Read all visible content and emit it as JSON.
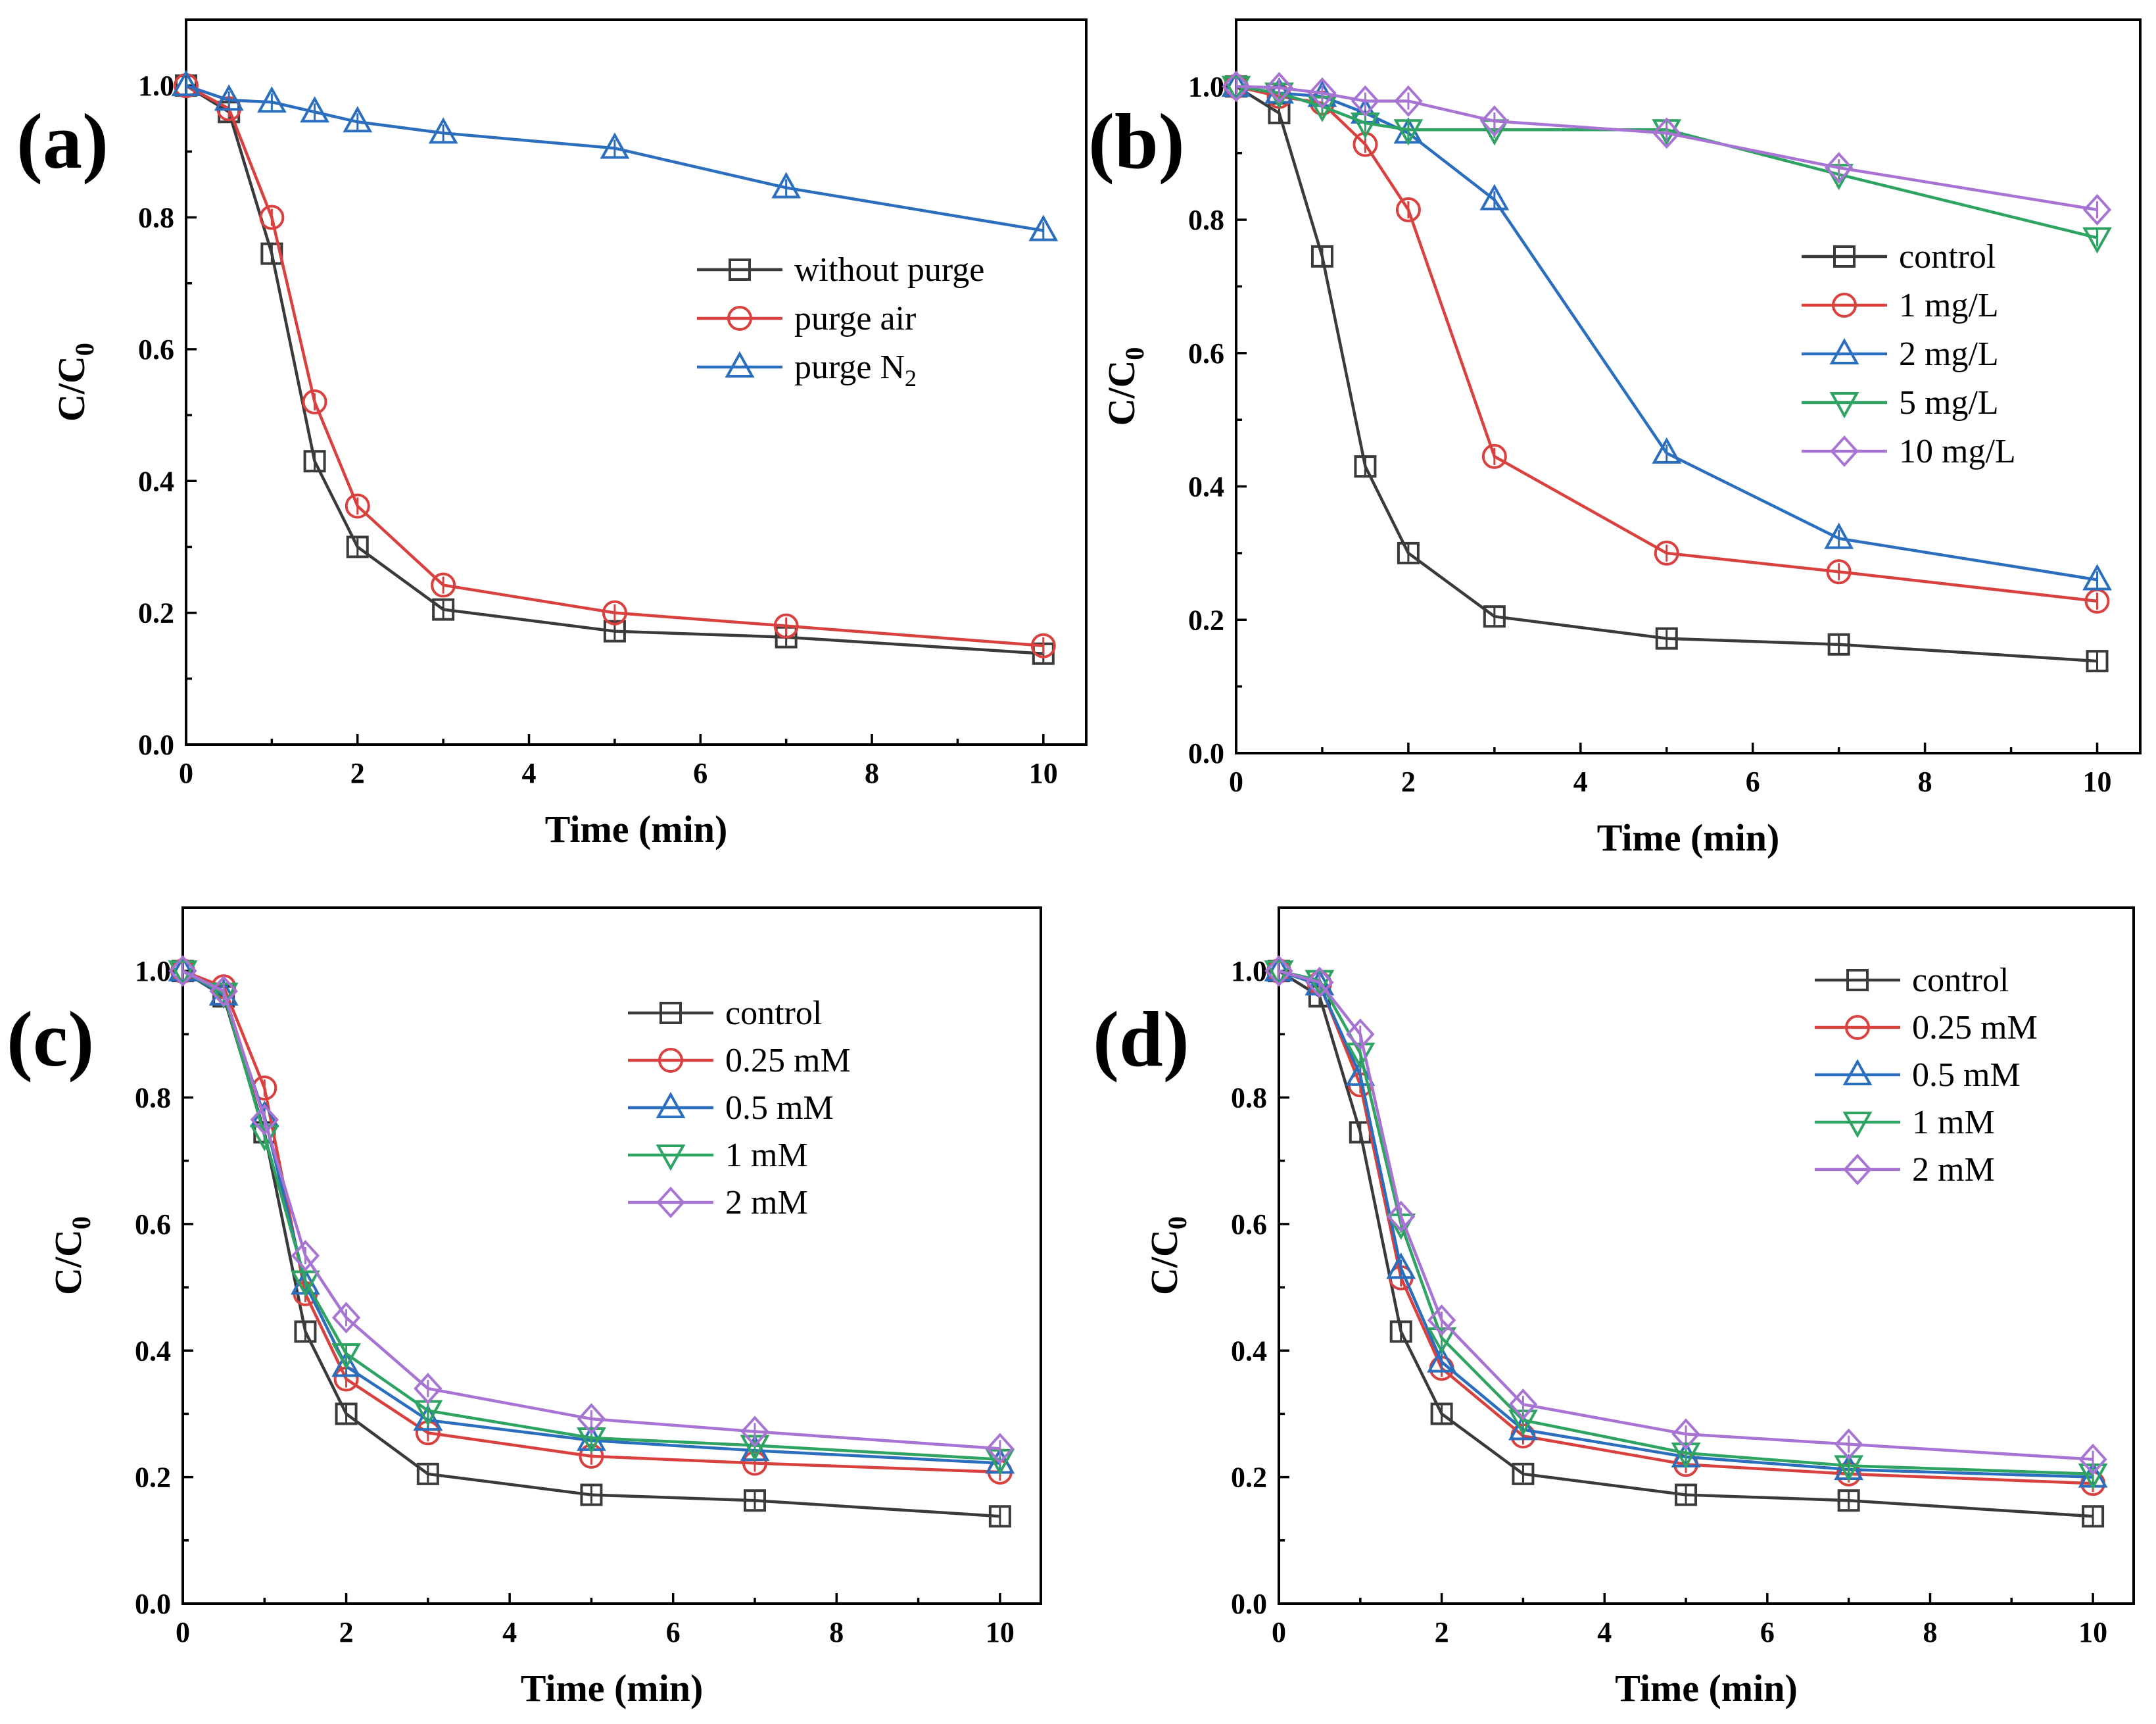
{
  "chart_data": [
    {
      "type": "line",
      "panel_label": "(a)",
      "xlabel": "Time (min)",
      "ylabel_main": "C/C",
      "ylabel_sub": "0",
      "xlim": [
        0,
        10.5
      ],
      "ylim": [
        0,
        1.1
      ],
      "xticks": [
        0,
        2,
        4,
        6,
        8,
        10
      ],
      "yticks": [
        0.0,
        0.2,
        0.4,
        0.6,
        0.8,
        1.0
      ],
      "xtick_labels": [
        "0",
        "2",
        "4",
        "6",
        "8",
        "10"
      ],
      "ytick_labels": [
        "0.0",
        "0.2",
        "0.4",
        "0.6",
        "0.8",
        "1.0"
      ],
      "legend_position": "right",
      "series": [
        {
          "name": "without purge",
          "name_sub": "",
          "marker": "square",
          "color": "#3a3a3a",
          "x": [
            0,
            0.5,
            1,
            1.5,
            2,
            3,
            5,
            7,
            10
          ],
          "y": [
            1.0,
            0.96,
            0.745,
            0.43,
            0.3,
            0.205,
            0.172,
            0.163,
            0.138
          ]
        },
        {
          "name": "purge air",
          "name_sub": "",
          "marker": "circle",
          "color": "#d9413f",
          "x": [
            0,
            0.5,
            1,
            1.5,
            2,
            3,
            5,
            7,
            10
          ],
          "y": [
            1.0,
            0.965,
            0.8,
            0.52,
            0.362,
            0.242,
            0.2,
            0.18,
            0.15
          ]
        },
        {
          "name": "purge N",
          "name_sub": "2",
          "marker": "triangle",
          "color": "#2a6ebd",
          "x": [
            0,
            0.5,
            1,
            1.5,
            2,
            3,
            5,
            7,
            10
          ],
          "y": [
            1.0,
            0.978,
            0.975,
            0.96,
            0.945,
            0.928,
            0.905,
            0.845,
            0.78
          ]
        }
      ]
    },
    {
      "type": "line",
      "panel_label": "(b)",
      "xlabel": "Time (min)",
      "ylabel_main": "C/C",
      "ylabel_sub": "0",
      "xlim": [
        0,
        10.5
      ],
      "ylim": [
        0,
        1.1
      ],
      "xticks": [
        0,
        2,
        4,
        6,
        8,
        10
      ],
      "yticks": [
        0.0,
        0.2,
        0.4,
        0.6,
        0.8,
        1.0
      ],
      "xtick_labels": [
        "0",
        "2",
        "4",
        "6",
        "8",
        "10"
      ],
      "ytick_labels": [
        "0.0",
        "0.2",
        "0.4",
        "0.6",
        "0.8",
        "1.0"
      ],
      "legend_position": "center",
      "series": [
        {
          "name": "control",
          "name_sub": "",
          "marker": "square",
          "color": "#3a3a3a",
          "x": [
            0,
            0.5,
            1,
            1.5,
            2,
            3,
            5,
            7,
            10
          ],
          "y": [
            1.0,
            0.96,
            0.745,
            0.43,
            0.3,
            0.205,
            0.172,
            0.163,
            0.138
          ]
        },
        {
          "name": "1 mg/L",
          "name_sub": "",
          "marker": "circle",
          "color": "#d9413f",
          "x": [
            0,
            0.5,
            1,
            1.5,
            2,
            3,
            5,
            7,
            10
          ],
          "y": [
            1.0,
            0.985,
            0.975,
            0.913,
            0.815,
            0.445,
            0.3,
            0.272,
            0.228
          ]
        },
        {
          "name": "2 mg/L",
          "name_sub": "",
          "marker": "triangle",
          "color": "#2a6ebd",
          "x": [
            0,
            0.5,
            1,
            1.5,
            2,
            3,
            5,
            7,
            10
          ],
          "y": [
            1.0,
            0.99,
            0.985,
            0.96,
            0.93,
            0.83,
            0.45,
            0.322,
            0.26
          ]
        },
        {
          "name": "5 mg/L",
          "name_sub": "",
          "marker": "triangle-down",
          "color": "#2ea362",
          "x": [
            0,
            0.5,
            1,
            1.5,
            2,
            3,
            5,
            7,
            10
          ],
          "y": [
            1.0,
            0.99,
            0.97,
            0.945,
            0.935,
            0.935,
            0.935,
            0.868,
            0.773
          ]
        },
        {
          "name": "10 mg/L",
          "name_sub": "",
          "marker": "diamond",
          "color": "#a874d4",
          "x": [
            0,
            0.5,
            1,
            1.5,
            2,
            3,
            5,
            7,
            10
          ],
          "y": [
            1.0,
            0.998,
            0.99,
            0.978,
            0.978,
            0.948,
            0.93,
            0.878,
            0.815
          ]
        }
      ]
    },
    {
      "type": "line",
      "panel_label": "(c)",
      "xlabel": "Time (min)",
      "ylabel_main": "C/C",
      "ylabel_sub": "0",
      "xlim": [
        0,
        10.5
      ],
      "ylim": [
        0,
        1.1
      ],
      "xticks": [
        0,
        2,
        4,
        6,
        8,
        10
      ],
      "yticks": [
        0.0,
        0.2,
        0.4,
        0.6,
        0.8,
        1.0
      ],
      "xtick_labels": [
        "0",
        "2",
        "4",
        "6",
        "8",
        "10"
      ],
      "ytick_labels": [
        "0.0",
        "0.2",
        "0.4",
        "0.6",
        "0.8",
        "1.0"
      ],
      "legend_position": "top-right",
      "series": [
        {
          "name": "control",
          "name_sub": "",
          "marker": "square",
          "color": "#3a3a3a",
          "x": [
            0,
            0.5,
            1,
            1.5,
            2,
            3,
            5,
            7,
            10
          ],
          "y": [
            1.0,
            0.96,
            0.745,
            0.43,
            0.3,
            0.205,
            0.172,
            0.163,
            0.138
          ]
        },
        {
          "name": "0.25 mM",
          "name_sub": "",
          "marker": "circle",
          "color": "#d9413f",
          "x": [
            0,
            0.5,
            1,
            1.5,
            2,
            3,
            5,
            7,
            10
          ],
          "y": [
            1.0,
            0.975,
            0.815,
            0.49,
            0.355,
            0.27,
            0.233,
            0.222,
            0.208
          ]
        },
        {
          "name": "0.5 mM",
          "name_sub": "",
          "marker": "triangle",
          "color": "#2a6ebd",
          "x": [
            0,
            0.5,
            1,
            1.5,
            2,
            3,
            5,
            7,
            10
          ],
          "y": [
            1.0,
            0.962,
            0.77,
            0.505,
            0.375,
            0.29,
            0.258,
            0.242,
            0.222
          ]
        },
        {
          "name": "1 mM",
          "name_sub": "",
          "marker": "triangle-down",
          "color": "#2ea362",
          "x": [
            0,
            0.5,
            1,
            1.5,
            2,
            3,
            5,
            7,
            10
          ],
          "y": [
            1.0,
            0.965,
            0.74,
            0.51,
            0.395,
            0.305,
            0.262,
            0.25,
            0.228
          ]
        },
        {
          "name": "2 mM",
          "name_sub": "",
          "marker": "diamond",
          "color": "#a874d4",
          "x": [
            0,
            0.5,
            1,
            1.5,
            2,
            3,
            5,
            7,
            10
          ],
          "y": [
            1.0,
            0.968,
            0.765,
            0.55,
            0.452,
            0.34,
            0.292,
            0.272,
            0.245
          ]
        }
      ]
    },
    {
      "type": "line",
      "panel_label": "(d)",
      "xlabel": "Time (min)",
      "ylabel_main": "C/C",
      "ylabel_sub": "0",
      "xlim": [
        0,
        10.5
      ],
      "ylim": [
        0,
        1.1
      ],
      "xticks": [
        0,
        2,
        4,
        6,
        8,
        10
      ],
      "yticks": [
        0.0,
        0.2,
        0.4,
        0.6,
        0.8,
        1.0
      ],
      "xtick_labels": [
        "0",
        "2",
        "4",
        "6",
        "8",
        "10"
      ],
      "ytick_labels": [
        "0.0",
        "0.2",
        "0.4",
        "0.6",
        "0.8",
        "1.0"
      ],
      "legend_position": "top-right",
      "series": [
        {
          "name": "control",
          "name_sub": "",
          "marker": "square",
          "color": "#3a3a3a",
          "x": [
            0,
            0.5,
            1,
            1.5,
            2,
            3,
            5,
            7,
            10
          ],
          "y": [
            1.0,
            0.96,
            0.745,
            0.43,
            0.3,
            0.205,
            0.172,
            0.163,
            0.138
          ]
        },
        {
          "name": "0.25 mM",
          "name_sub": "",
          "marker": "circle",
          "color": "#d9413f",
          "x": [
            0,
            0.5,
            1,
            1.5,
            2,
            3,
            5,
            7,
            10
          ],
          "y": [
            1.0,
            0.98,
            0.82,
            0.515,
            0.372,
            0.265,
            0.22,
            0.205,
            0.19
          ]
        },
        {
          "name": "0.5 mM",
          "name_sub": "",
          "marker": "triangle",
          "color": "#2a6ebd",
          "x": [
            0,
            0.5,
            1,
            1.5,
            2,
            3,
            5,
            7,
            10
          ],
          "y": [
            1.0,
            0.978,
            0.835,
            0.53,
            0.382,
            0.275,
            0.232,
            0.212,
            0.2
          ]
        },
        {
          "name": "1 mM",
          "name_sub": "",
          "marker": "triangle-down",
          "color": "#2ea362",
          "x": [
            0,
            0.5,
            1,
            1.5,
            2,
            3,
            5,
            7,
            10
          ],
          "y": [
            1.0,
            0.985,
            0.87,
            0.6,
            0.42,
            0.29,
            0.238,
            0.218,
            0.205
          ]
        },
        {
          "name": "2 mM",
          "name_sub": "",
          "marker": "diamond",
          "color": "#a874d4",
          "x": [
            0,
            0.5,
            1,
            1.5,
            2,
            3,
            5,
            7,
            10
          ],
          "y": [
            1.0,
            0.982,
            0.9,
            0.612,
            0.448,
            0.315,
            0.268,
            0.252,
            0.228
          ]
        }
      ]
    }
  ]
}
